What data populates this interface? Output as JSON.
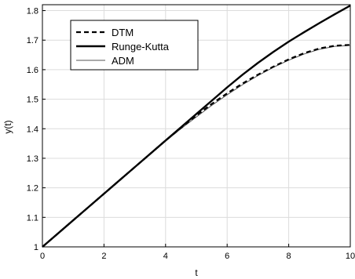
{
  "chart_data": {
    "type": "line",
    "title": "",
    "xlabel": "t",
    "ylabel": "y(t)",
    "xlim": [
      0,
      10
    ],
    "ylim": [
      1,
      1.82
    ],
    "xticks": [
      0,
      2,
      4,
      6,
      8,
      10
    ],
    "xtick_labels": [
      "0",
      "2",
      "4",
      "6",
      "8",
      "10"
    ],
    "yticks": [
      1,
      1.1,
      1.2,
      1.3,
      1.4,
      1.5,
      1.6,
      1.7,
      1.8
    ],
    "ytick_labels": [
      "1",
      "1.1",
      "1.2",
      "1.3",
      "1.4",
      "1.5",
      "1.6",
      "1.7",
      "1.8"
    ],
    "grid": true,
    "legend_position": "top-left",
    "series": [
      {
        "name": "DTM",
        "style": "dashed",
        "x": [
          0,
          0.5,
          1,
          1.5,
          2,
          2.5,
          3,
          3.5,
          4,
          4.5,
          5,
          5.5,
          6,
          6.5,
          7,
          7.5,
          8,
          8.5,
          9,
          9.5,
          10
        ],
        "y": [
          1.0,
          1.045,
          1.09,
          1.135,
          1.18,
          1.225,
          1.27,
          1.315,
          1.36,
          1.403,
          1.445,
          1.484,
          1.52,
          1.553,
          1.583,
          1.61,
          1.635,
          1.656,
          1.672,
          1.681,
          1.684
        ]
      },
      {
        "name": "Runge-Kutta",
        "style": "thick",
        "x": [
          0,
          0.5,
          1,
          1.5,
          2,
          2.5,
          3,
          3.5,
          4,
          4.5,
          5,
          5.5,
          6,
          6.5,
          7,
          7.5,
          8,
          8.5,
          9,
          9.5,
          10
        ],
        "y": [
          1.0,
          1.045,
          1.09,
          1.135,
          1.18,
          1.225,
          1.27,
          1.315,
          1.36,
          1.405,
          1.45,
          1.495,
          1.54,
          1.583,
          1.623,
          1.66,
          1.695,
          1.727,
          1.758,
          1.788,
          1.817
        ]
      },
      {
        "name": "ADM",
        "style": "thin",
        "x": [
          0,
          0.5,
          1,
          1.5,
          2,
          2.5,
          3,
          3.5,
          4,
          4.5,
          5,
          5.5,
          6,
          6.5,
          7,
          7.5,
          8,
          8.5,
          9,
          9.5,
          10
        ],
        "y": [
          1.0,
          1.045,
          1.09,
          1.135,
          1.18,
          1.225,
          1.27,
          1.315,
          1.358,
          1.4,
          1.44,
          1.479,
          1.515,
          1.549,
          1.58,
          1.608,
          1.632,
          1.653,
          1.669,
          1.679,
          1.682
        ]
      }
    ]
  }
}
